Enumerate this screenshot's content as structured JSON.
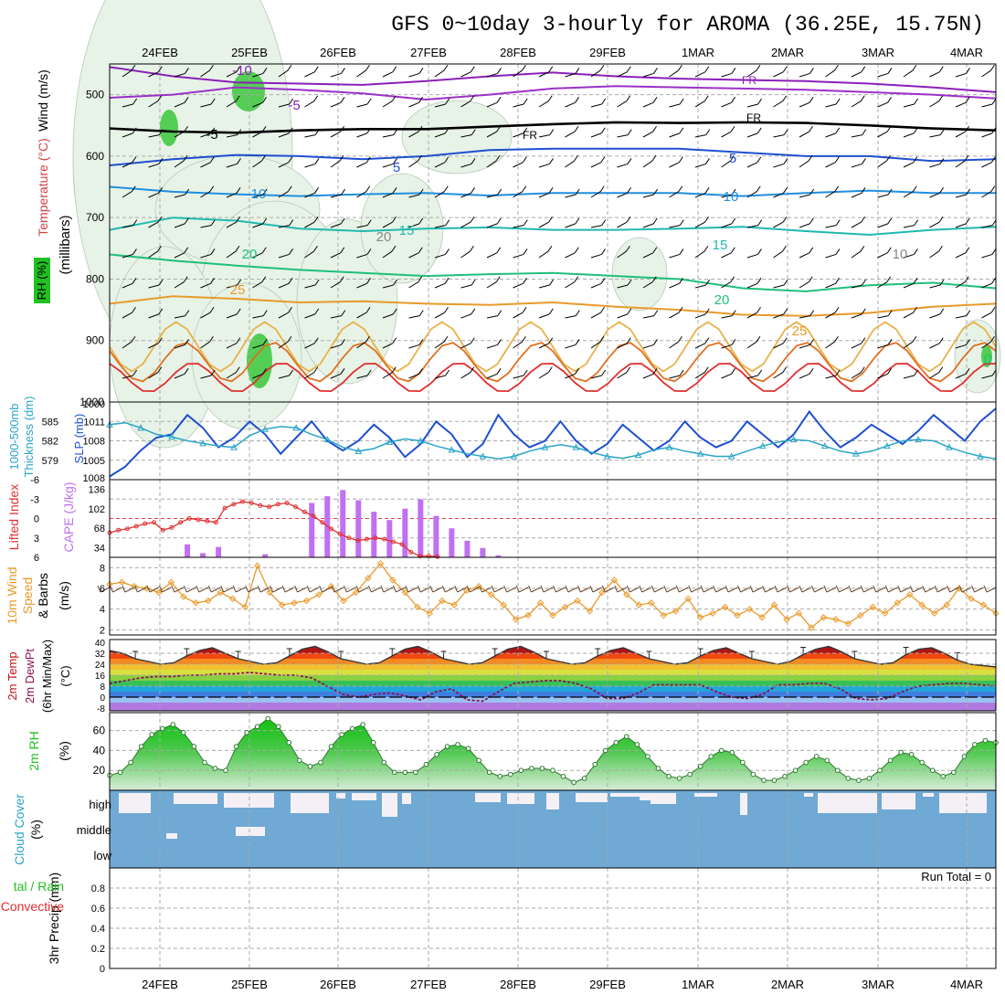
{
  "title": "GFS 0~10day 3-hourly for AROMA (36.25E, 15.75N)",
  "dates": [
    "24FEB",
    "25FEB",
    "26FEB",
    "27FEB",
    "28FEB",
    "29FEB",
    "1MAR",
    "2MAR",
    "3MAR",
    "4MAR"
  ],
  "colors": {
    "grid": "#aaaaaa",
    "text": "#000000",
    "purple": "#8a1fb8",
    "blue": "#1e4fd0",
    "cyan": "#2aa5c8",
    "green": "#22c022",
    "orange": "#e89a2a",
    "red": "#e03030"
  },
  "chart_data": [
    {
      "type": "heatmap",
      "panel": "upper-air",
      "ylabel_parts": [
        "Wind (m/s)",
        "Temperature (°C)",
        "RH (%)",
        "(millibars)"
      ],
      "y_ticks": [
        500,
        600,
        700,
        800,
        900,
        1000
      ],
      "ylim": [
        1000,
        450
      ],
      "x": [
        "24FEB",
        "25FEB",
        "26FEB",
        "27FEB",
        "28FEB",
        "29FEB",
        "1MAR",
        "2MAR",
        "3MAR",
        "4MAR"
      ],
      "contour_labels": [
        "-10",
        "-5",
        "FR",
        "FR",
        "FR",
        "-5",
        "5",
        "5",
        "10",
        "10",
        "15",
        "15",
        "20",
        "20",
        "25",
        "25",
        "20",
        "10",
        "0"
      ],
      "isotherms": [
        {
          "label": "-10",
          "level": [
            455,
            470,
            480,
            482,
            484,
            478,
            470,
            464,
            470,
            474,
            476,
            478,
            482,
            488,
            496
          ]
        },
        {
          "label": "-5",
          "level": [
            505,
            500,
            488,
            492,
            498,
            508,
            500,
            490,
            486,
            488,
            490,
            492,
            496,
            500,
            506
          ]
        },
        {
          "label": "FR",
          "level": [
            555,
            560,
            562,
            558,
            556,
            556,
            552,
            548,
            545,
            546,
            545,
            546,
            550,
            555,
            558
          ]
        },
        {
          "label": "5",
          "level": [
            615,
            605,
            598,
            600,
            605,
            600,
            590,
            588,
            588,
            588,
            594,
            600,
            600,
            608,
            605
          ]
        },
        {
          "label": "10",
          "level": [
            650,
            658,
            662,
            665,
            662,
            660,
            664,
            660,
            660,
            660,
            665,
            660,
            656,
            660,
            660
          ]
        },
        {
          "label": "15",
          "level": [
            720,
            700,
            705,
            718,
            722,
            718,
            716,
            720,
            720,
            718,
            715,
            722,
            728,
            720,
            715
          ]
        },
        {
          "label": "20",
          "level": [
            760,
            770,
            778,
            785,
            790,
            795,
            792,
            790,
            795,
            800,
            815,
            820,
            810,
            806,
            815
          ]
        },
        {
          "label": "25",
          "level": [
            840,
            828,
            832,
            838,
            836,
            840,
            842,
            838,
            845,
            850,
            858,
            860,
            855,
            845,
            840
          ]
        }
      ]
    },
    {
      "type": "line",
      "panel": "thickness-slp",
      "ylabel_left": "1000-500mb Thickness (dm)",
      "ylabel_right": "SLP (mb)",
      "y_ticks_left": [
        579,
        582,
        585
      ],
      "y_ticks_right": [
        1005,
        1008,
        1011
      ],
      "ylim": [
        1002,
        1014
      ],
      "series": [
        {
          "name": "SLP (mb)",
          "values": [
            1002.5,
            1004.0,
            1006.5,
            1008.5,
            1009.0,
            1012.0,
            1010.0,
            1007.0,
            1008.5,
            1011.0,
            1009.0,
            1006.0,
            1008.5,
            1011.0,
            1008.0,
            1006.5,
            1008.0,
            1010.5,
            1008.5,
            1005.5,
            1007.5,
            1011.0,
            1009.0,
            1005.5,
            1007.5,
            1012.0,
            1009.0,
            1007.0,
            1008.0,
            1011.0,
            1008.0,
            1006.0,
            1007.5,
            1010.5,
            1008.5,
            1006.5,
            1008.0,
            1011.0,
            1008.5,
            1007.0,
            1008.0,
            1011.0,
            1009.0,
            1007.0,
            1009.0,
            1012.5,
            1009.5,
            1007.0,
            1008.5,
            1010.5,
            1009.0,
            1007.5,
            1009.5,
            1012.0,
            1010.0,
            1008.0,
            1011.0,
            1013.0
          ]
        },
        {
          "name": "Thickness (dm)",
          "values": [
            584.5,
            584.8,
            584.0,
            583.0,
            582.6,
            582.0,
            581.6,
            581.2,
            581.0,
            582.8,
            583.8,
            584.2,
            584.0,
            583.0,
            582.2,
            581.0,
            580.4,
            580.8,
            581.8,
            582.3,
            582.0,
            581.2,
            580.6,
            580.0,
            579.6,
            579.2,
            579.6,
            580.4,
            581.0,
            581.4,
            581.0,
            580.2,
            579.6,
            579.3,
            579.8,
            580.6,
            581.0,
            580.4,
            580.0,
            579.6,
            579.6,
            580.4,
            581.2,
            581.8,
            582.2,
            582.0,
            581.2,
            580.4,
            580.0,
            580.4,
            581.2,
            582.0,
            582.2,
            582.0,
            581.0,
            580.2,
            579.6,
            579.2
          ]
        }
      ]
    },
    {
      "type": "bar",
      "panel": "cape-lifted-index",
      "ylabel_left": "Lifted Index",
      "ylabel_right": "CAPE (J/kg)",
      "y_ticks_li": [
        "-6",
        "-3",
        "0",
        "3",
        "6"
      ],
      "y_ticks_cape": [
        "136",
        "102",
        "68",
        "34"
      ],
      "cape_values": [
        0,
        0,
        0,
        0,
        0,
        25,
        8,
        20,
        0,
        0,
        6,
        0,
        0,
        105,
        118,
        130,
        110,
        88,
        72,
        94,
        112,
        80,
        56,
        32,
        18,
        4,
        0,
        0,
        0,
        0,
        0,
        0,
        0,
        0,
        0,
        0,
        0,
        0,
        0,
        0,
        0,
        0,
        0,
        0,
        0,
        0,
        0,
        0,
        0,
        0,
        0,
        0,
        0,
        0,
        0,
        0,
        0,
        0
      ],
      "li_values": [
        2.2,
        1.8,
        1.6,
        1.2,
        0.8,
        0.6,
        1.8,
        1.4,
        0.6,
        0.0,
        0.2,
        0.4,
        0.6,
        -1.6,
        -2.2,
        -2.6,
        -2.4,
        -2.0,
        -1.8,
        -2.2,
        -2.4,
        -1.8,
        -1.0,
        -0.4,
        0.6,
        1.6,
        2.4,
        3.0,
        3.4,
        3.2,
        3.0,
        3.2,
        3.6,
        4.0,
        5.2,
        5.8,
        5.8,
        5.9
      ]
    },
    {
      "type": "line",
      "panel": "10m-wind",
      "ylabel": "10m Wind Speed & Barbs (m/s)",
      "y_ticks": [
        2,
        4,
        6,
        8
      ],
      "ylim": [
        1.5,
        9
      ],
      "values": [
        6.4,
        6.6,
        6.2,
        6.0,
        5.6,
        6.6,
        5.2,
        4.6,
        4.8,
        5.6,
        5.0,
        4.2,
        8.2,
        5.6,
        4.4,
        4.6,
        4.8,
        5.4,
        6.2,
        4.8,
        5.6,
        7.0,
        8.4,
        6.8,
        5.6,
        4.2,
        3.6,
        4.8,
        4.4,
        5.8,
        6.2,
        5.4,
        4.4,
        3.0,
        3.4,
        4.6,
        3.4,
        4.2,
        4.8,
        3.8,
        5.6,
        6.8,
        5.4,
        4.4,
        4.6,
        3.4,
        3.8,
        5.0,
        3.2,
        3.6,
        4.2,
        3.4,
        4.0,
        3.2,
        4.4,
        3.0,
        3.6,
        2.2,
        3.2,
        3.0,
        2.6,
        3.4,
        4.2,
        3.6,
        4.6,
        5.4,
        4.4,
        3.6,
        4.4,
        6.0,
        5.0,
        4.4,
        3.6
      ]
    },
    {
      "type": "area",
      "panel": "2m-temp",
      "ylabel": "2m Temp 2m DewPt (6hr Min/Max) (°C)",
      "y_ticks": [
        "40",
        "32",
        "24",
        "16",
        "8",
        "0",
        "-8"
      ],
      "temp": [
        34,
        32,
        28,
        26,
        24,
        25,
        30,
        34,
        36,
        32,
        28,
        26,
        24,
        25,
        30,
        35,
        37,
        33,
        28,
        26,
        24,
        25,
        30,
        35,
        37,
        33,
        28,
        26,
        24,
        25,
        30,
        35,
        37,
        33,
        28,
        26,
        24,
        25,
        30,
        34,
        36,
        32,
        28,
        26,
        24,
        25,
        30,
        34,
        36,
        32,
        28,
        26,
        24,
        26,
        31,
        35,
        37,
        33,
        28,
        26,
        24,
        25,
        31,
        35,
        36,
        32,
        27,
        24,
        23,
        22
      ],
      "dewpt": [
        10,
        12,
        14,
        15,
        15,
        16,
        16,
        17,
        17,
        18,
        17,
        16,
        16,
        14,
        8,
        2,
        0,
        2,
        3,
        1,
        -2,
        4,
        6,
        -2,
        -3,
        4,
        10,
        11,
        12,
        12,
        10,
        6,
        -1,
        -1,
        3,
        9,
        9,
        9,
        9,
        4,
        0,
        -1,
        2,
        9,
        9,
        10,
        10,
        6,
        -1,
        -2,
        -1,
        4,
        8,
        9,
        10,
        10,
        9,
        8
      ]
    },
    {
      "type": "area",
      "panel": "2m-rh",
      "ylabel": "2m RH (%)",
      "y_ticks": [
        20,
        40,
        60
      ],
      "ylim": [
        0,
        78
      ],
      "values": [
        15,
        18,
        28,
        44,
        56,
        62,
        66,
        58,
        44,
        28,
        22,
        20,
        44,
        58,
        64,
        72,
        64,
        48,
        30,
        24,
        28,
        44,
        56,
        62,
        66,
        48,
        28,
        18,
        18,
        18,
        26,
        36,
        44,
        46,
        42,
        30,
        18,
        14,
        16,
        20,
        22,
        22,
        20,
        14,
        8,
        12,
        26,
        40,
        48,
        54,
        46,
        34,
        22,
        14,
        12,
        16,
        24,
        34,
        40,
        38,
        28,
        16,
        10,
        10,
        14,
        20,
        28,
        34,
        30,
        20,
        12,
        10,
        12,
        20,
        30,
        38,
        36,
        28,
        20,
        14,
        18,
        34,
        46,
        50,
        48
      ]
    },
    {
      "type": "table",
      "panel": "cloud-cover",
      "ylabel": "Cloud Cover (%)",
      "rows": [
        "high",
        "middle",
        "low"
      ]
    },
    {
      "type": "bar",
      "panel": "3hr-precip",
      "ylabel_left": "3hr Precip (mm)",
      "ylabel_right": "Total / Rain Convective",
      "y_ticks": [
        "0",
        "0.2",
        "0.4",
        "0.6",
        "0.8"
      ],
      "ylim": [
        0,
        1
      ],
      "run_total_label": "Run Total = 0"
    }
  ]
}
